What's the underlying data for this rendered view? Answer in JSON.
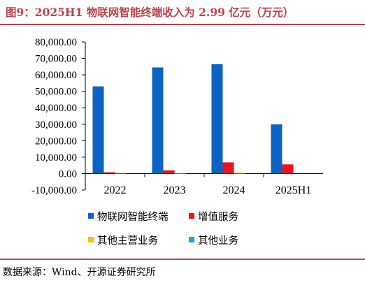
{
  "title": "图9：2025H1 物联网智能终端收入为 2.99 亿元（万元）",
  "source": "数据来源：Wind、开源证券研究所",
  "colors": {
    "title": "#b8434c",
    "rule": "#b8434c"
  },
  "chart_data": {
    "type": "bar",
    "categories": [
      "2022",
      "2023",
      "2024",
      "2025H1"
    ],
    "ylim": [
      -10000,
      80000
    ],
    "ytick_step": 10000,
    "ytick_labels": [
      "-10,000.00",
      "0.00",
      "10,000.00",
      "20,000.00",
      "30,000.00",
      "40,000.00",
      "50,000.00",
      "60,000.00",
      "70,000.00",
      "80,000.00"
    ],
    "grid": false,
    "legend_position": "bottom",
    "series": [
      {
        "name": "物联网智能终端",
        "color": "#0d63c4",
        "values": [
          53000,
          64500,
          66500,
          29900
        ]
      },
      {
        "name": "增值服务",
        "color": "#e8141e",
        "values": [
          800,
          2000,
          6800,
          5600
        ]
      },
      {
        "name": "其他主营业务",
        "color": "#f5c200",
        "values": [
          400,
          300,
          500,
          0
        ]
      },
      {
        "name": "其他业务",
        "color": "#1aa3e0",
        "values": [
          0,
          0,
          0,
          0
        ]
      }
    ]
  }
}
